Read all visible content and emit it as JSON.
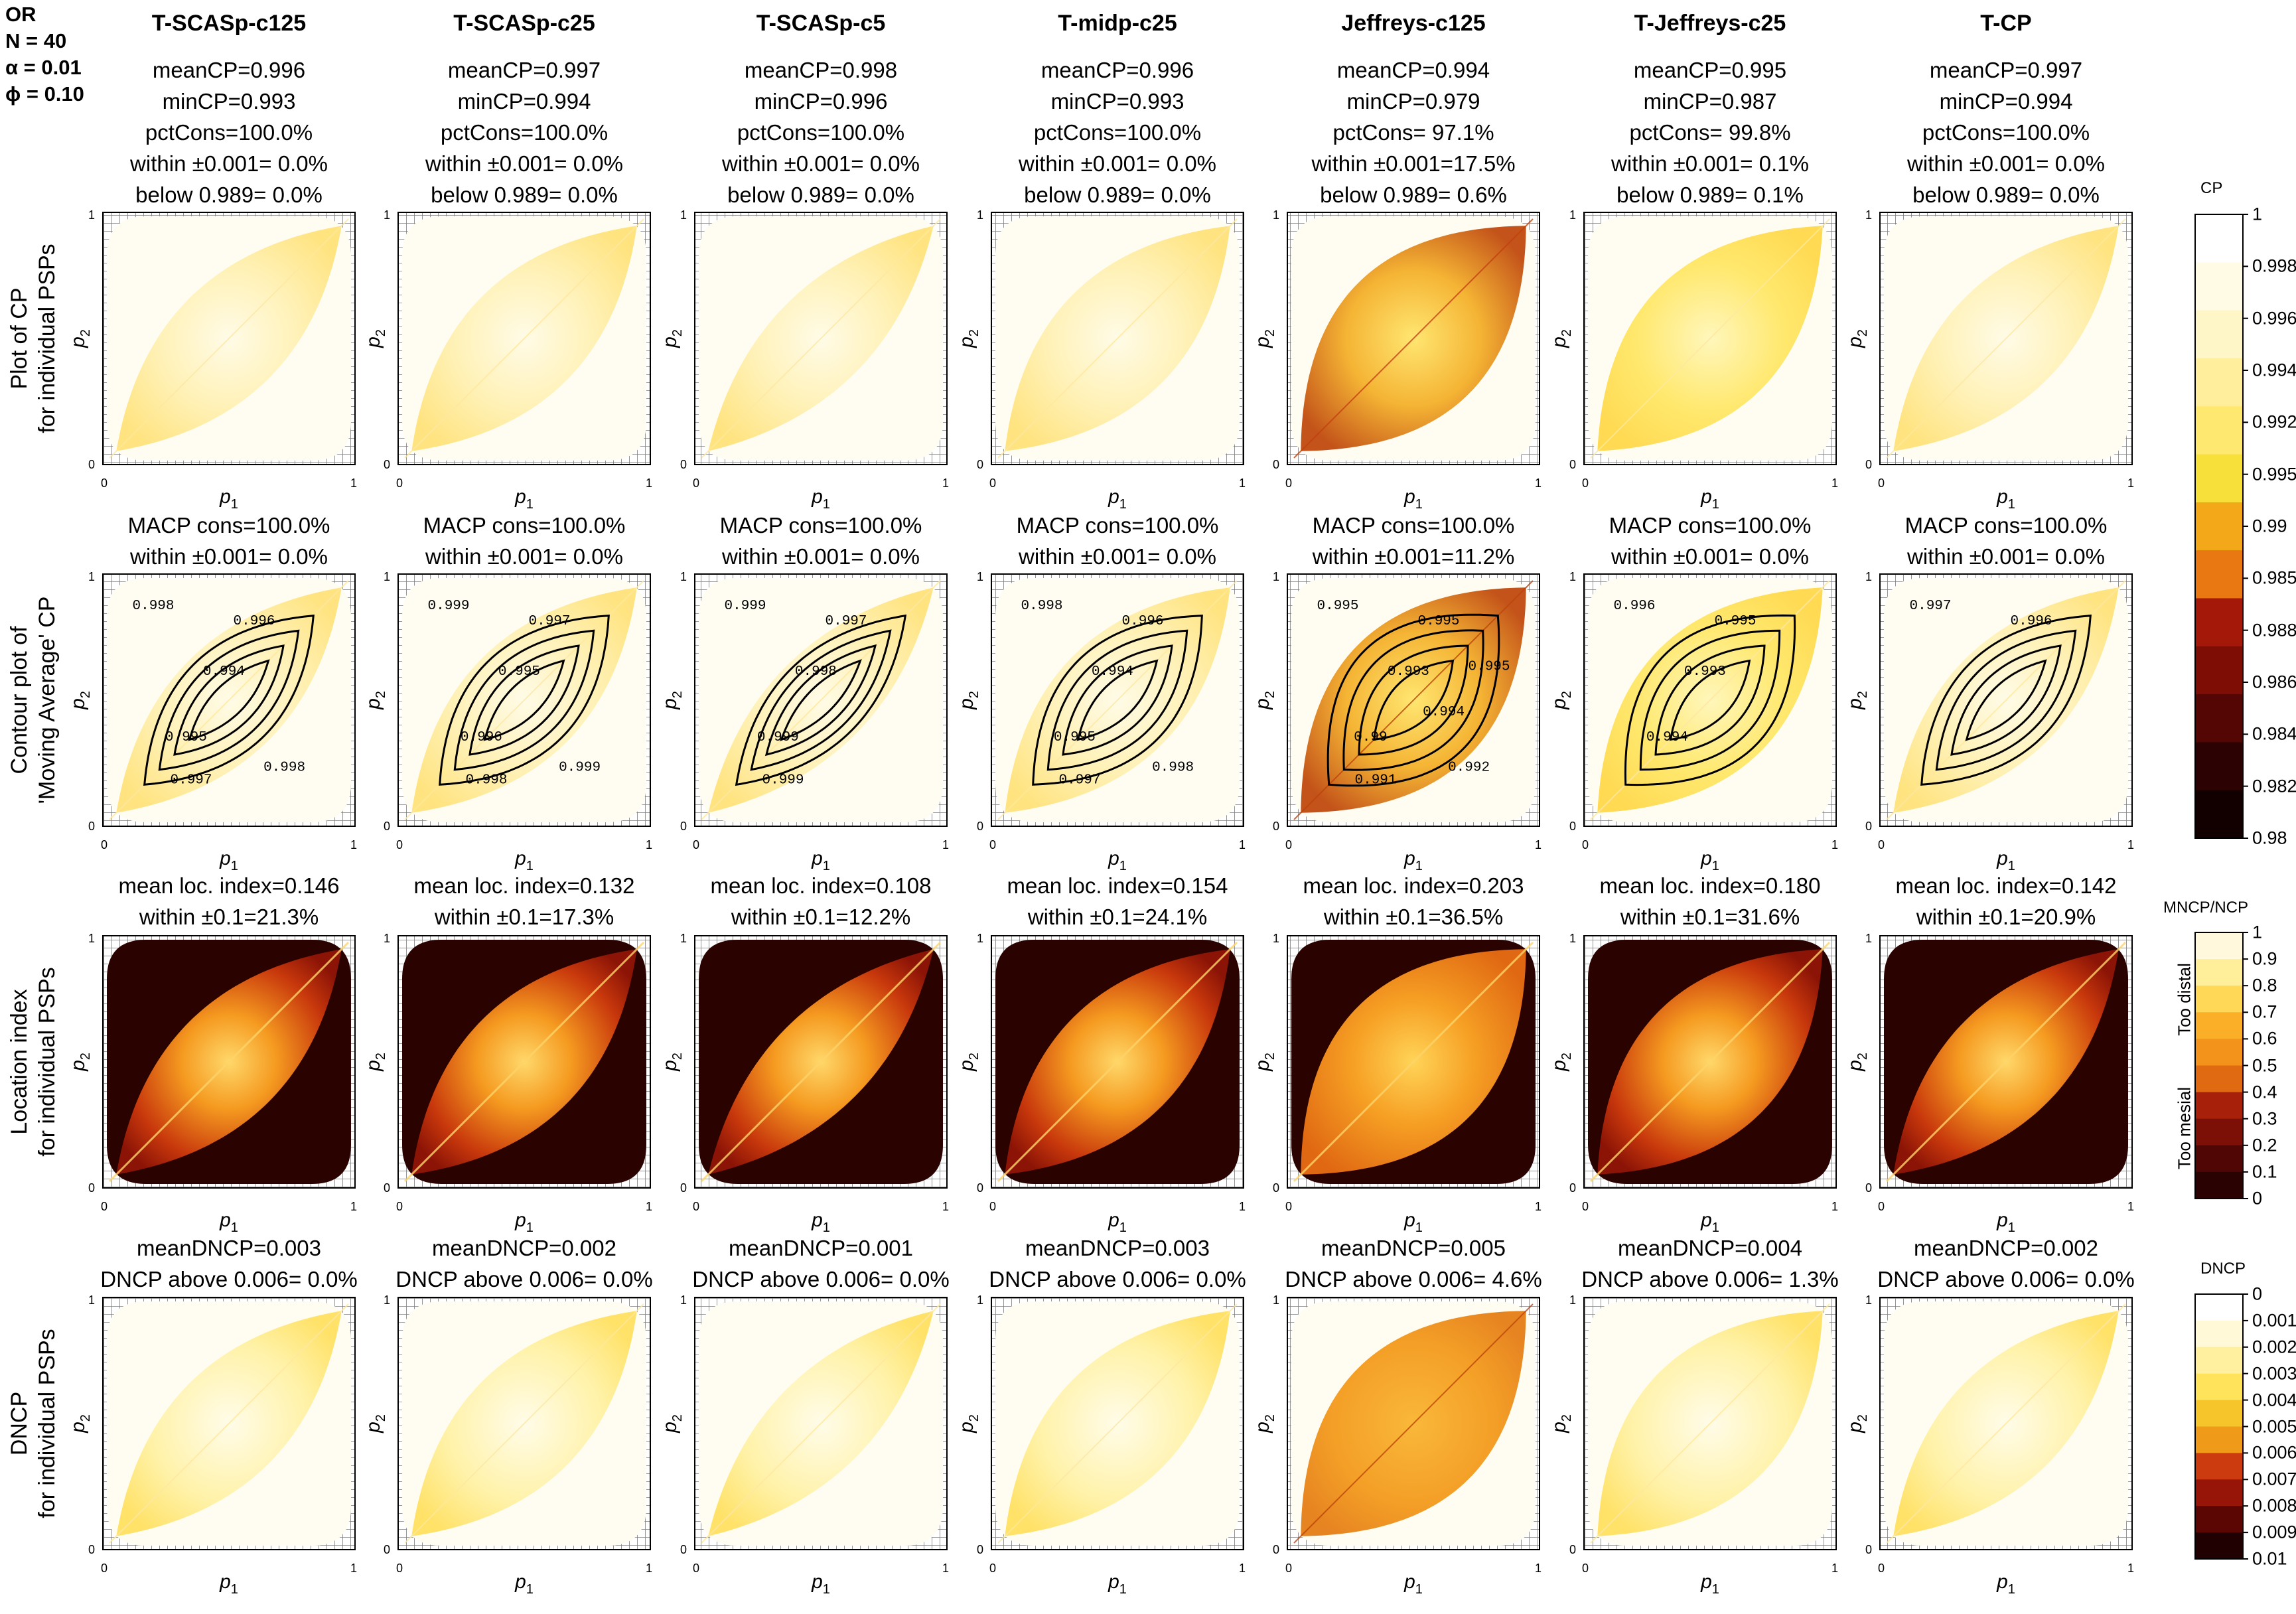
{
  "meta": {
    "line1": "OR",
    "line2": "N = 40",
    "line3": "α = 0.01",
    "line4": "ϕ = 0.10"
  },
  "axis": {
    "x": "p",
    "x_sub": "1",
    "y": "p",
    "y_sub": "2",
    "tick0": "0",
    "tick1": "1"
  },
  "row_labels": [
    [
      "Plot of CP",
      "for individual PSPs"
    ],
    [
      "Contour plot of",
      "'Moving Average' CP"
    ],
    [
      "Location index",
      "for individual PSPs"
    ],
    [
      "DNCP",
      "for individual PSPs"
    ]
  ],
  "columns": [
    {
      "title": "T-SCASp-c125",
      "stats": [
        "meanCP=0.996",
        "minCP=0.993",
        "pctCons=100.0%",
        "within ±0.001= 0.0%",
        "below 0.989= 0.0%"
      ],
      "macp": [
        "MACP cons=100.0%",
        "within ±0.001= 0.0%"
      ],
      "loc": [
        "mean loc. index=0.146",
        "within ±0.1=21.3%"
      ],
      "dncp": [
        "meanDNCP=0.003",
        "DNCP above 0.006= 0.0%"
      ]
    },
    {
      "title": "T-SCASp-c25",
      "stats": [
        "meanCP=0.997",
        "minCP=0.994",
        "pctCons=100.0%",
        "within ±0.001= 0.0%",
        "below 0.989= 0.0%"
      ],
      "macp": [
        "MACP cons=100.0%",
        "within ±0.001= 0.0%"
      ],
      "loc": [
        "mean loc. index=0.132",
        "within ±0.1=17.3%"
      ],
      "dncp": [
        "meanDNCP=0.002",
        "DNCP above 0.006= 0.0%"
      ]
    },
    {
      "title": "T-SCASp-c5",
      "stats": [
        "meanCP=0.998",
        "minCP=0.996",
        "pctCons=100.0%",
        "within ±0.001= 0.0%",
        "below 0.989= 0.0%"
      ],
      "macp": [
        "MACP cons=100.0%",
        "within ±0.001= 0.0%"
      ],
      "loc": [
        "mean loc. index=0.108",
        "within ±0.1=12.2%"
      ],
      "dncp": [
        "meanDNCP=0.001",
        "DNCP above 0.006= 0.0%"
      ]
    },
    {
      "title": "T-midp-c25",
      "stats": [
        "meanCP=0.996",
        "minCP=0.993",
        "pctCons=100.0%",
        "within ±0.001= 0.0%",
        "below 0.989= 0.0%"
      ],
      "macp": [
        "MACP cons=100.0%",
        "within ±0.001= 0.0%"
      ],
      "loc": [
        "mean loc. index=0.154",
        "within ±0.1=24.1%"
      ],
      "dncp": [
        "meanDNCP=0.003",
        "DNCP above 0.006= 0.0%"
      ]
    },
    {
      "title": "Jeffreys-c125",
      "stats": [
        "meanCP=0.994",
        "minCP=0.979",
        "pctCons= 97.1%",
        "within ±0.001=17.5%",
        "below 0.989= 0.6%"
      ],
      "macp": [
        "MACP cons=100.0%",
        "within ±0.001=11.2%"
      ],
      "loc": [
        "mean loc. index=0.203",
        "within ±0.1=36.5%"
      ],
      "dncp": [
        "meanDNCP=0.005",
        "DNCP above 0.006= 4.6%"
      ]
    },
    {
      "title": "T-Jeffreys-c25",
      "stats": [
        "meanCP=0.995",
        "minCP=0.987",
        "pctCons= 99.8%",
        "within ±0.001= 0.1%",
        "below 0.989= 0.1%"
      ],
      "macp": [
        "MACP cons=100.0%",
        "within ±0.001= 0.0%"
      ],
      "loc": [
        "mean loc. index=0.180",
        "within ±0.1=31.6%"
      ],
      "dncp": [
        "meanDNCP=0.004",
        "DNCP above 0.006= 1.3%"
      ]
    },
    {
      "title": "T-CP",
      "stats": [
        "meanCP=0.997",
        "minCP=0.994",
        "pctCons=100.0%",
        "within ±0.001= 0.0%",
        "below 0.989= 0.0%"
      ],
      "macp": [
        "MACP cons=100.0%",
        "within ±0.001= 0.0%"
      ],
      "loc": [
        "mean loc. index=0.142",
        "within ±0.1=20.9%"
      ],
      "dncp": [
        "meanDNCP=0.002",
        "DNCP above 0.006= 0.0%"
      ]
    }
  ],
  "colorbars": [
    {
      "title": "CP",
      "ticks": [
        "1",
        "0.998",
        "0.996",
        "0.994",
        "0.992",
        "0.995",
        "0.99",
        "0.985",
        "0.988",
        "0.986",
        "0.984",
        "0.982",
        "0.98"
      ],
      "colors": [
        "#ffffff",
        "#fffbe4",
        "#fff6c8",
        "#ffee9c",
        "#ffe870",
        "#f7e03a",
        "#f2a818",
        "#e97812",
        "#a4180a",
        "#7e0e05",
        "#540604",
        "#2c0202",
        "#120000"
      ]
    },
    {
      "title": "MNCP/NCP",
      "ticks": [
        "1",
        "0.9",
        "0.8",
        "0.7",
        "0.6",
        "0.5",
        "0.4",
        "0.3",
        "0.2",
        "0.1",
        "0"
      ],
      "side_top": "Too distal",
      "side_bottom": "Too mesial",
      "colors": [
        "#fff8dc",
        "#ffef9a",
        "#ffd858",
        "#fbaf28",
        "#f3931c",
        "#e06a12",
        "#a6200a",
        "#7c1006",
        "#500604",
        "#2a0201"
      ]
    },
    {
      "title": "DNCP",
      "ticks": [
        "0",
        "0.001",
        "0.002",
        "0.003",
        "0.004",
        "0.005",
        "0.006",
        "0.007",
        "0.008",
        "0.009",
        "0.01"
      ],
      "colors": [
        "#ffffff",
        "#fff9d8",
        "#fff0a0",
        "#ffe35a",
        "#f6c52c",
        "#f09a1a",
        "#cc3a10",
        "#961408",
        "#5c0604",
        "#200000"
      ]
    }
  ],
  "chart_data": [
    {
      "type": "heatmap",
      "title": "Plot of CP for individual PSPs",
      "xlabel": "p1",
      "ylabel": "p2",
      "xlim": [
        0,
        1
      ],
      "ylim": [
        0,
        1
      ],
      "series": [
        {
          "name": "T-SCASp-c125",
          "meanCP": 0.996,
          "minCP": 0.993,
          "pctCons": 100.0,
          "within_0_001": 0.0,
          "below_0_989": 0.0
        },
        {
          "name": "T-SCASp-c25",
          "meanCP": 0.997,
          "minCP": 0.994,
          "pctCons": 100.0,
          "within_0_001": 0.0,
          "below_0_989": 0.0
        },
        {
          "name": "T-SCASp-c5",
          "meanCP": 0.998,
          "minCP": 0.996,
          "pctCons": 100.0,
          "within_0_001": 0.0,
          "below_0_989": 0.0
        },
        {
          "name": "T-midp-c25",
          "meanCP": 0.996,
          "minCP": 0.993,
          "pctCons": 100.0,
          "within_0_001": 0.0,
          "below_0_989": 0.0
        },
        {
          "name": "Jeffreys-c125",
          "meanCP": 0.994,
          "minCP": 0.979,
          "pctCons": 97.1,
          "within_0_001": 17.5,
          "below_0_989": 0.6
        },
        {
          "name": "T-Jeffreys-c25",
          "meanCP": 0.995,
          "minCP": 0.987,
          "pctCons": 99.8,
          "within_0_001": 0.1,
          "below_0_989": 0.1
        },
        {
          "name": "T-CP",
          "meanCP": 0.997,
          "minCP": 0.994,
          "pctCons": 100.0,
          "within_0_001": 0.0,
          "below_0_989": 0.0
        }
      ]
    },
    {
      "type": "heatmap",
      "title": "Contour plot of 'Moving Average' CP",
      "xlabel": "p1",
      "ylabel": "p2",
      "xlim": [
        0,
        1
      ],
      "ylim": [
        0,
        1
      ],
      "series": [
        {
          "name": "T-SCASp-c125",
          "macp_cons": 100.0,
          "within_0_001": 0.0,
          "contour_labels": [
            "0.998",
            "0.996",
            "0.994",
            "0.995",
            "0.997",
            "0.998"
          ]
        },
        {
          "name": "T-SCASp-c25",
          "macp_cons": 100.0,
          "within_0_001": 0.0,
          "contour_labels": [
            "0.999",
            "0.997",
            "0.995",
            "0.996",
            "0.998",
            "0.999"
          ]
        },
        {
          "name": "T-SCASp-c5",
          "macp_cons": 100.0,
          "within_0_001": 0.0,
          "contour_labels": [
            "0.999",
            "0.997",
            "0.998",
            "0.999",
            "0.999"
          ]
        },
        {
          "name": "T-midp-c25",
          "macp_cons": 100.0,
          "within_0_001": 0.0,
          "contour_labels": [
            "0.998",
            "0.996",
            "0.994",
            "0.995",
            "0.997",
            "0.998"
          ]
        },
        {
          "name": "Jeffreys-c125",
          "macp_cons": 100.0,
          "within_0_001": 11.2,
          "contour_labels": [
            "0.995",
            "0.995",
            "0.993",
            "0.99",
            "0.991",
            "0.992",
            "0.994",
            "0.995"
          ]
        },
        {
          "name": "T-Jeffreys-c25",
          "macp_cons": 100.0,
          "within_0_001": 0.0,
          "contour_labels": [
            "0.996",
            "0.995",
            "0.993",
            "0.994"
          ]
        },
        {
          "name": "T-CP",
          "macp_cons": 100.0,
          "within_0_001": 0.0,
          "contour_labels": [
            "0.997",
            "0.996"
          ]
        }
      ]
    },
    {
      "type": "heatmap",
      "title": "Location index for individual PSPs",
      "xlabel": "p1",
      "ylabel": "p2",
      "xlim": [
        0,
        1
      ],
      "ylim": [
        0,
        1
      ],
      "series": [
        {
          "name": "T-SCASp-c125",
          "mean_loc_index": 0.146,
          "within_0_1": 21.3
        },
        {
          "name": "T-SCASp-c25",
          "mean_loc_index": 0.132,
          "within_0_1": 17.3
        },
        {
          "name": "T-SCASp-c5",
          "mean_loc_index": 0.108,
          "within_0_1": 12.2
        },
        {
          "name": "T-midp-c25",
          "mean_loc_index": 0.154,
          "within_0_1": 24.1
        },
        {
          "name": "Jeffreys-c125",
          "mean_loc_index": 0.203,
          "within_0_1": 36.5
        },
        {
          "name": "T-Jeffreys-c25",
          "mean_loc_index": 0.18,
          "within_0_1": 31.6
        },
        {
          "name": "T-CP",
          "mean_loc_index": 0.142,
          "within_0_1": 20.9
        }
      ]
    },
    {
      "type": "heatmap",
      "title": "DNCP for individual PSPs",
      "xlabel": "p1",
      "ylabel": "p2",
      "xlim": [
        0,
        1
      ],
      "ylim": [
        0,
        1
      ],
      "series": [
        {
          "name": "T-SCASp-c125",
          "meanDNCP": 0.003,
          "above_0_006": 0.0
        },
        {
          "name": "T-SCASp-c25",
          "meanDNCP": 0.002,
          "above_0_006": 0.0
        },
        {
          "name": "T-SCASp-c5",
          "meanDNCP": 0.001,
          "above_0_006": 0.0
        },
        {
          "name": "T-midp-c25",
          "meanDNCP": 0.003,
          "above_0_006": 0.0
        },
        {
          "name": "Jeffreys-c125",
          "meanDNCP": 0.005,
          "above_0_006": 4.6
        },
        {
          "name": "T-Jeffreys-c25",
          "meanDNCP": 0.004,
          "above_0_006": 1.3
        },
        {
          "name": "T-CP",
          "meanDNCP": 0.002,
          "above_0_006": 0.0
        }
      ]
    }
  ]
}
